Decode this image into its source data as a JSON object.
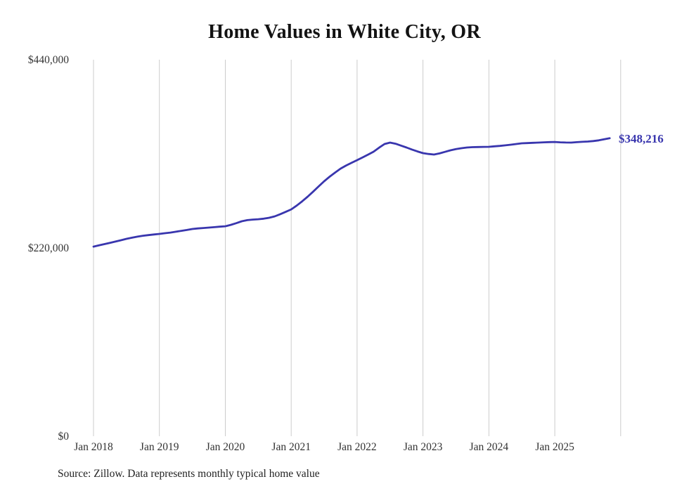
{
  "title": "Home Values in White City, OR",
  "source_note": "Source: Zillow. Data represents monthly typical home value",
  "end_label": "$348,216",
  "colors": {
    "line": "#3936ae",
    "grid": "#cccccc",
    "axis_text": "#333333",
    "title_text": "#131313"
  },
  "chart_data": {
    "type": "line",
    "title": "Home Values in White City, OR",
    "xlabel": "",
    "ylabel": "",
    "ylim": [
      0,
      440000
    ],
    "grid": "vertical-yearly",
    "legend": "none",
    "x_tick_labels": [
      "Jan 2018",
      "Jan 2019",
      "Jan 2020",
      "Jan 2021",
      "Jan 2022",
      "Jan 2023",
      "Jan 2024",
      "Jan 2025"
    ],
    "y_ticks": [
      {
        "label": "$0",
        "value": 0
      },
      {
        "label": "$220,000",
        "value": 220000
      },
      {
        "label": "$440,000",
        "value": 440000
      }
    ],
    "final_value": 348216,
    "series": [
      {
        "name": "Typical home value",
        "start": "2018-01",
        "frequency": "monthly",
        "values": [
          221600,
          223000,
          224500,
          226000,
          227500,
          229000,
          230700,
          232000,
          233200,
          234300,
          235000,
          235800,
          236400,
          237200,
          238000,
          239000,
          240000,
          241000,
          242200,
          242800,
          243300,
          243800,
          244300,
          244900,
          245400,
          247000,
          249000,
          251200,
          252500,
          253200,
          253600,
          254200,
          255300,
          256900,
          259500,
          262200,
          265100,
          269500,
          274500,
          279900,
          285800,
          291900,
          298000,
          303300,
          308200,
          312800,
          316400,
          319600,
          322600,
          325800,
          329100,
          332500,
          337200,
          341500,
          343100,
          341800,
          339600,
          337400,
          335000,
          332800,
          330800,
          329800,
          329200,
          330500,
          332300,
          334100,
          335500,
          336600,
          337400,
          337800,
          338000,
          338100,
          338200,
          338800,
          339300,
          339900,
          340700,
          341500,
          342300,
          342600,
          342900,
          343100,
          343500,
          343700,
          343900,
          343500,
          343200,
          343100,
          343600,
          344000,
          344400,
          344900,
          345800,
          347000,
          348216
        ]
      }
    ]
  }
}
